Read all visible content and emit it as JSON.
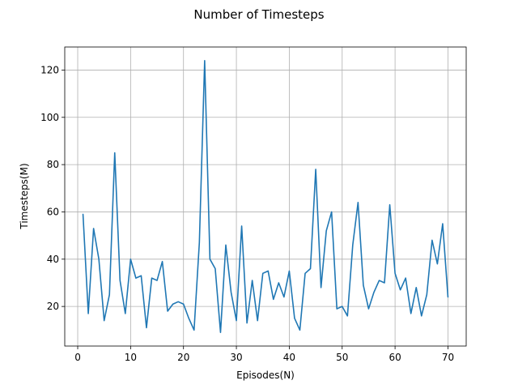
{
  "chart_data": {
    "type": "line",
    "title": "Number of Timesteps",
    "xlabel": "Episodes(N)",
    "ylabel": "Timesteps(M)",
    "xlim": [
      -2.45,
      73.45
    ],
    "ylim": [
      3.25,
      129.75
    ],
    "xticks": [
      0,
      10,
      20,
      30,
      40,
      50,
      60,
      70
    ],
    "yticks": [
      20,
      40,
      60,
      80,
      100,
      120
    ],
    "grid": true,
    "legend": "none",
    "series_color": "#1f77b4",
    "series": [
      {
        "x": [
          1,
          2,
          3,
          4,
          5,
          6,
          7,
          8,
          9,
          10,
          11,
          12,
          13,
          14,
          15,
          16,
          17,
          18,
          19,
          20,
          21,
          22,
          23,
          24,
          25,
          26,
          27,
          28,
          29,
          30,
          31,
          32,
          33,
          34,
          35,
          36,
          37,
          38,
          39,
          40,
          41,
          42,
          43,
          44,
          45,
          46,
          47,
          48,
          49,
          50,
          51,
          52,
          53,
          54,
          55,
          56,
          57,
          58,
          59,
          60,
          61,
          62,
          63,
          64,
          65,
          66,
          67,
          68,
          69,
          70
        ],
        "values": [
          59,
          17,
          53,
          40,
          14,
          25,
          85,
          31,
          17,
          40,
          32,
          33,
          11,
          32,
          31,
          39,
          18,
          21,
          22,
          21,
          15,
          10,
          47,
          124,
          40,
          36,
          9,
          46,
          26,
          14,
          54,
          13,
          31,
          14,
          34,
          35,
          23,
          30,
          24,
          35,
          15,
          10,
          34,
          36,
          78,
          28,
          52,
          60,
          19,
          20,
          16,
          46,
          64,
          29,
          19,
          26,
          31,
          30,
          63,
          34,
          27,
          32,
          17,
          28,
          16,
          25,
          48,
          38,
          55,
          24
        ]
      }
    ]
  }
}
